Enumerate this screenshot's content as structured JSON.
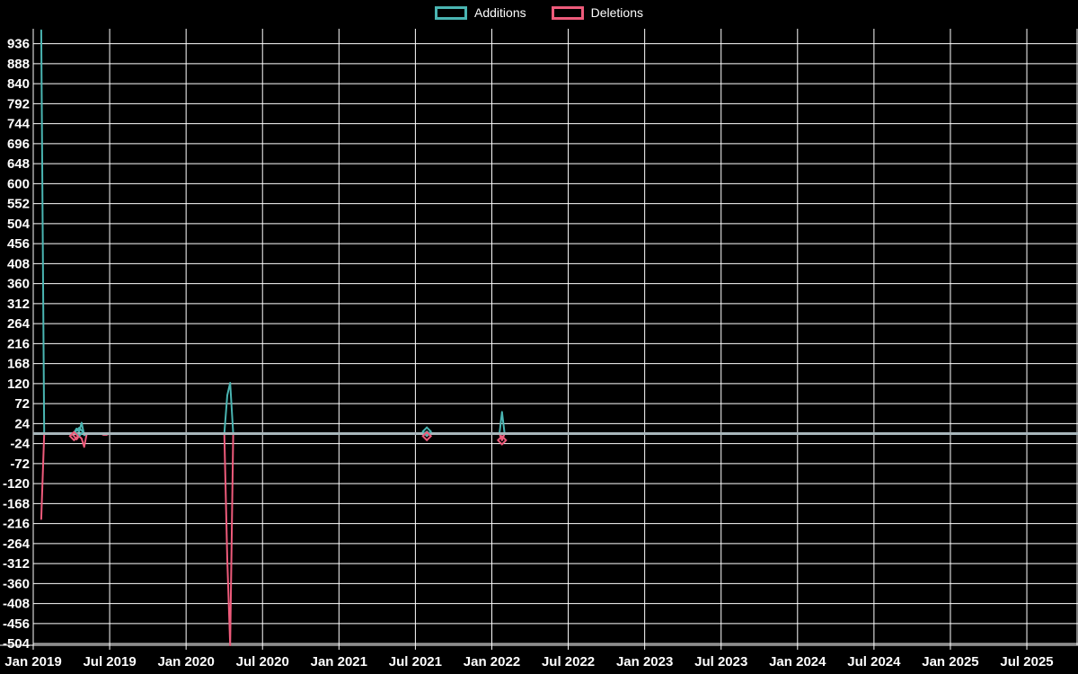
{
  "legend": {
    "items": [
      {
        "label": "Additions",
        "color": "#4ab5b2"
      },
      {
        "label": "Deletions",
        "color": "#ee5b7b"
      }
    ]
  },
  "chart_data": {
    "type": "line",
    "title": "",
    "xlabel": "",
    "ylabel": "",
    "grid": true,
    "legend_position": "top-center",
    "colors": {
      "background": "#000000",
      "grid": "#ffffff",
      "text": "#ffffff",
      "zero_line": "#a8b6bb",
      "additions": "#4ab5b2",
      "deletions": "#ee5b7b"
    },
    "x_axis": {
      "unit": "months_since_jan_2019",
      "tick_labels": [
        "Jan 2019",
        "Jul 2019",
        "Jan 2020",
        "Jul 2020",
        "Jan 2021",
        "Jul 2021",
        "Jan 2022",
        "Jul 2022",
        "Jan 2023",
        "Jul 2023",
        "Jan 2024",
        "Jul 2024",
        "Jan 2025",
        "Jul 2025"
      ],
      "tick_months": [
        0,
        6,
        12,
        18,
        24,
        30,
        36,
        42,
        48,
        54,
        60,
        66,
        72,
        78
      ],
      "range_months": [
        0,
        82
      ]
    },
    "y_axis": {
      "min": -504,
      "max": 936,
      "step": 48,
      "tick_labels": [
        936,
        888,
        840,
        792,
        744,
        696,
        648,
        600,
        552,
        504,
        456,
        408,
        360,
        312,
        264,
        216,
        168,
        120,
        72,
        24,
        -24,
        -72,
        -120,
        -168,
        -216,
        -264,
        -312,
        -360,
        -408,
        -456,
        -504
      ]
    },
    "series": [
      {
        "name": "Additions",
        "color_key": "additions",
        "points": [
          [
            0.63,
            968
          ],
          [
            0.86,
            0
          ],
          [
            3.0,
            0
          ],
          [
            3.2,
            2
          ],
          [
            3.4,
            12
          ],
          [
            3.6,
            4
          ],
          [
            3.8,
            26
          ],
          [
            4.0,
            -4
          ],
          [
            4.2,
            0
          ],
          [
            15.0,
            0
          ],
          [
            15.23,
            92
          ],
          [
            15.46,
            122
          ],
          [
            15.7,
            0
          ],
          [
            30.7,
            0
          ],
          [
            30.9,
            5
          ],
          [
            31.1,
            0
          ],
          [
            36.6,
            0
          ],
          [
            36.8,
            52
          ],
          [
            37.0,
            0
          ],
          [
            82,
            0
          ]
        ]
      },
      {
        "name": "Deletions",
        "color_key": "deletions",
        "points": [
          [
            0.63,
            -205
          ],
          [
            0.86,
            0
          ],
          [
            3.0,
            0
          ],
          [
            3.2,
            -6
          ],
          [
            3.4,
            -14
          ],
          [
            3.6,
            -6
          ],
          [
            3.8,
            -12
          ],
          [
            4.0,
            -32
          ],
          [
            4.2,
            0
          ],
          [
            5.3,
            0
          ],
          [
            5.5,
            -3
          ],
          [
            5.75,
            -3
          ],
          [
            6.0,
            0
          ],
          [
            15.0,
            0
          ],
          [
            15.23,
            -302
          ],
          [
            15.46,
            -508
          ],
          [
            15.7,
            0
          ],
          [
            30.7,
            0
          ],
          [
            30.9,
            -6
          ],
          [
            31.1,
            0
          ],
          [
            36.6,
            0
          ],
          [
            36.8,
            -16
          ],
          [
            37.0,
            0
          ],
          [
            82,
            0
          ]
        ]
      }
    ],
    "markers": [
      {
        "series": "Additions",
        "x": 3.6,
        "y": 4
      },
      {
        "series": "Deletions",
        "x": 3.2,
        "y": -6
      },
      {
        "series": "Additions",
        "x": 30.9,
        "y": 5
      },
      {
        "series": "Deletions",
        "x": 30.9,
        "y": -6
      },
      {
        "series": "Deletions",
        "x": 36.8,
        "y": -16
      }
    ]
  }
}
